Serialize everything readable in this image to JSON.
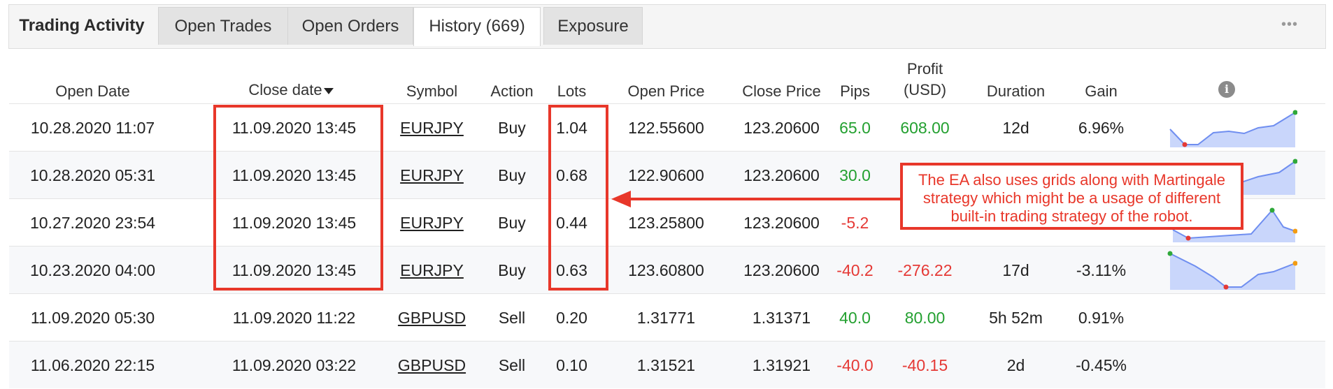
{
  "tabs": [
    {
      "label": "Trading Activity"
    },
    {
      "label": "Open Trades"
    },
    {
      "label": "Open Orders"
    },
    {
      "label": "History (669)"
    },
    {
      "label": "Exposure"
    }
  ],
  "menu_glyph": "•••",
  "columns": {
    "open_date": "Open Date",
    "close_date": "Close date",
    "symbol": "Symbol",
    "action": "Action",
    "lots": "Lots",
    "open_price": "Open Price",
    "close_price": "Close Price",
    "pips": "Pips",
    "profit_line1": "Profit",
    "profit_line2": "(USD)",
    "duration": "Duration",
    "gain": "Gain",
    "info_glyph": "i"
  },
  "rows": [
    {
      "open_date": "10.28.2020 11:07",
      "close_date": "11.09.2020 13:45",
      "symbol": "EURJPY",
      "action": "Buy",
      "lots": "1.04",
      "open_price": "122.55600",
      "close_price": "123.20600",
      "pips": "65.0",
      "profit": "608.00",
      "duration": "12d",
      "gain": "6.96%"
    },
    {
      "open_date": "10.28.2020 05:31",
      "close_date": "11.09.2020 13:45",
      "symbol": "EURJPY",
      "action": "Buy",
      "lots": "0.68",
      "open_price": "122.90600",
      "close_price": "123.20600",
      "pips": "30.0",
      "profit": "",
      "duration": "",
      "gain": ""
    },
    {
      "open_date": "10.27.2020 23:54",
      "close_date": "11.09.2020 13:45",
      "symbol": "EURJPY",
      "action": "Buy",
      "lots": "0.44",
      "open_price": "123.25800",
      "close_price": "123.20600",
      "pips": "-5.2",
      "profit": "",
      "duration": "",
      "gain": ""
    },
    {
      "open_date": "10.23.2020 04:00",
      "close_date": "11.09.2020 13:45",
      "symbol": "EURJPY",
      "action": "Buy",
      "lots": "0.63",
      "open_price": "123.60800",
      "close_price": "123.20600",
      "pips": "-40.2",
      "profit": "-276.22",
      "duration": "17d",
      "gain": "-3.11%"
    },
    {
      "open_date": "11.09.2020 05:30",
      "close_date": "11.09.2020 11:22",
      "symbol": "GBPUSD",
      "action": "Sell",
      "lots": "0.20",
      "open_price": "1.31771",
      "close_price": "1.31371",
      "pips": "40.0",
      "profit": "80.00",
      "duration": "5h 52m",
      "gain": "0.91%"
    },
    {
      "open_date": "11.06.2020 22:15",
      "close_date": "11.09.2020 03:22",
      "symbol": "GBPUSD",
      "action": "Sell",
      "lots": "0.10",
      "open_price": "1.31521",
      "close_price": "1.31921",
      "pips": "-40.0",
      "profit": "-40.15",
      "duration": "2d",
      "gain": "-0.45%"
    }
  ],
  "callout": {
    "line1": "The EA also uses grids along with Martingale",
    "line2": "strategy which might be a usage of different",
    "line3": "built-in trading strategy of the robot."
  },
  "colors": {
    "positive": "#23a030",
    "negative": "#e53935",
    "annotation": "#e8372a",
    "sparkline_fill": "#c9d6fb",
    "sparkline_line": "#6f8ef0"
  }
}
